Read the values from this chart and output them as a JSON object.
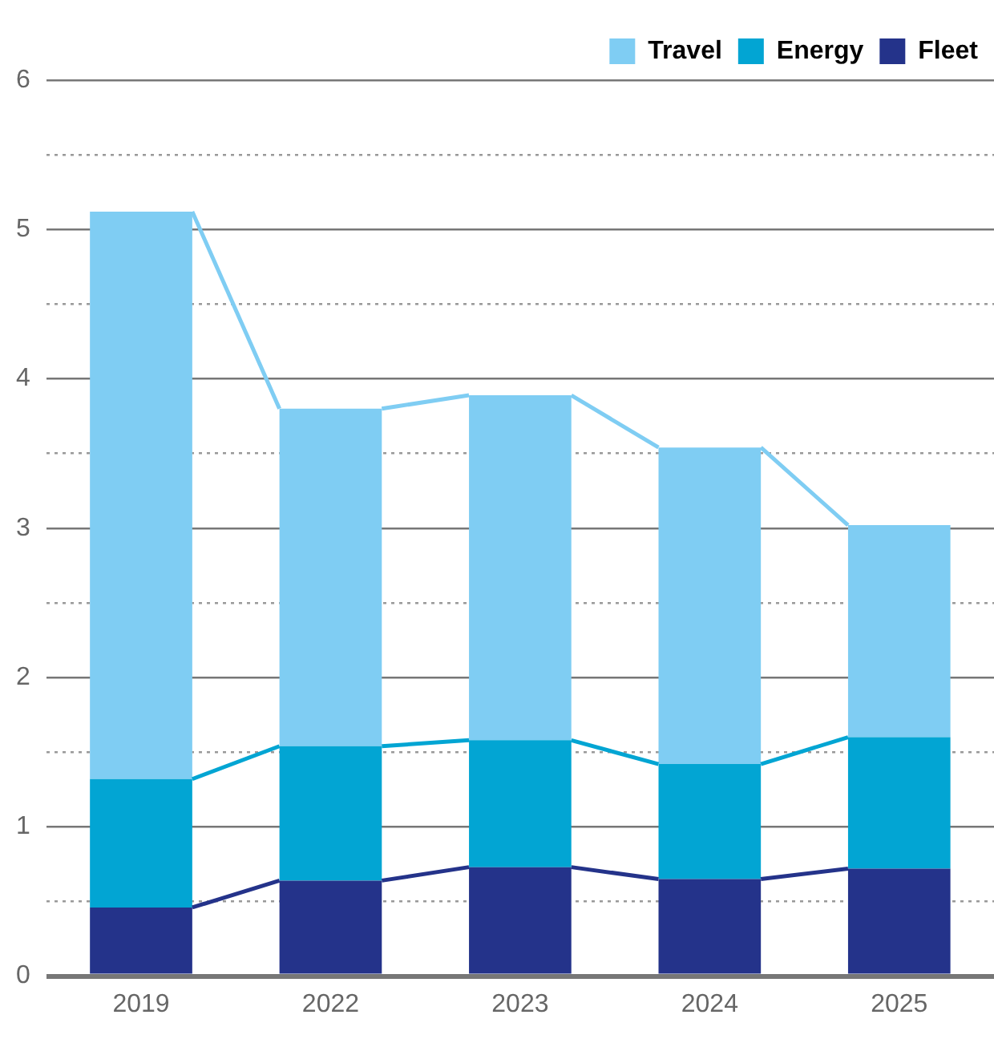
{
  "chart_data": {
    "type": "bar",
    "stacked": true,
    "categories": [
      "2019",
      "2022",
      "2023",
      "2024",
      "2025"
    ],
    "series": [
      {
        "name": "Fleet",
        "color": "#24338a",
        "values": [
          0.46,
          0.64,
          0.73,
          0.65,
          0.72
        ]
      },
      {
        "name": "Energy",
        "color": "#02a5d3",
        "values": [
          0.86,
          0.9,
          0.85,
          0.77,
          0.88
        ]
      },
      {
        "name": "Travel",
        "color": "#7fcdf3",
        "values": [
          3.8,
          2.26,
          2.31,
          2.12,
          1.42
        ]
      }
    ],
    "ylim": [
      0,
      6
    ],
    "yticks": [
      0,
      {
        "value": 0.5,
        "label": null
      },
      1,
      {
        "value": 1.5,
        "label": null
      },
      2,
      {
        "value": 2.5,
        "label": null
      },
      3,
      {
        "value": 3.5,
        "label": null
      },
      4,
      {
        "value": 4.5,
        "label": null
      },
      5,
      {
        "value": 5.5,
        "label": null
      },
      6
    ],
    "grid": true,
    "legend": "top right"
  }
}
